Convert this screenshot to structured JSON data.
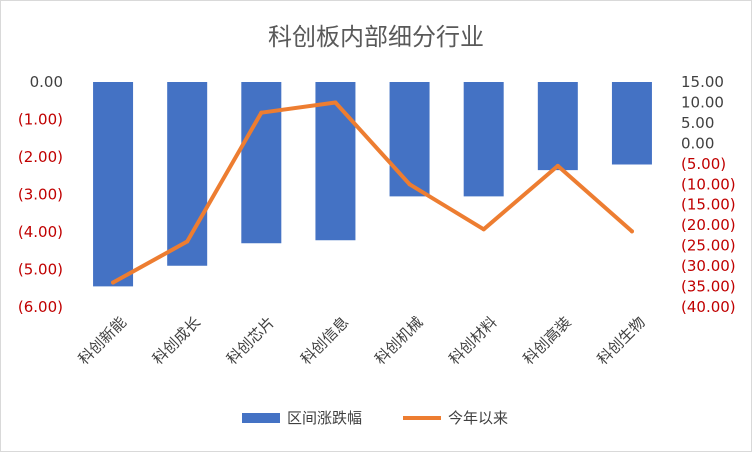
{
  "chart_data": {
    "type": "bar",
    "title": "科创板内部细分行业",
    "categories": [
      "科创新能",
      "科创成长",
      "科创芯片",
      "科创信息",
      "科创机械",
      "科创材料",
      "科创高装",
      "科创生物"
    ],
    "series": [
      {
        "name": "区间涨跌幅",
        "type": "bar",
        "axis": "left",
        "color": "#4472c4",
        "values": [
          -5.45,
          -4.9,
          -4.3,
          -4.22,
          -3.05,
          -3.05,
          -2.35,
          -2.2
        ]
      },
      {
        "name": "今年以来",
        "type": "line",
        "axis": "right",
        "color": "#ed7d31",
        "values": [
          -34.0,
          -24.0,
          7.5,
          10.0,
          -10.0,
          -21.0,
          -5.5,
          -21.5
        ]
      }
    ],
    "y_left": {
      "ylim": [
        -6,
        0
      ],
      "ticks": [
        0,
        -1,
        -2,
        -3,
        -4,
        -5,
        -6
      ],
      "tick_labels": [
        "0.00",
        "(1.00)",
        "(2.00)",
        "(3.00)",
        "(4.00)",
        "(5.00)",
        "(6.00)"
      ],
      "negative_color": "#c00000"
    },
    "y_right": {
      "ylim": [
        -40,
        15
      ],
      "ticks": [
        15,
        10,
        5,
        0,
        -5,
        -10,
        -15,
        -20,
        -25,
        -30,
        -35,
        -40
      ],
      "tick_labels": [
        "15.00",
        "10.00",
        "5.00",
        "0.00",
        "(5.00)",
        "(10.00)",
        "(15.00)",
        "(20.00)",
        "(25.00)",
        "(30.00)",
        "(35.00)",
        "(40.00)"
      ],
      "negative_color": "#c00000"
    },
    "grid": false,
    "legend_position": "bottom"
  }
}
